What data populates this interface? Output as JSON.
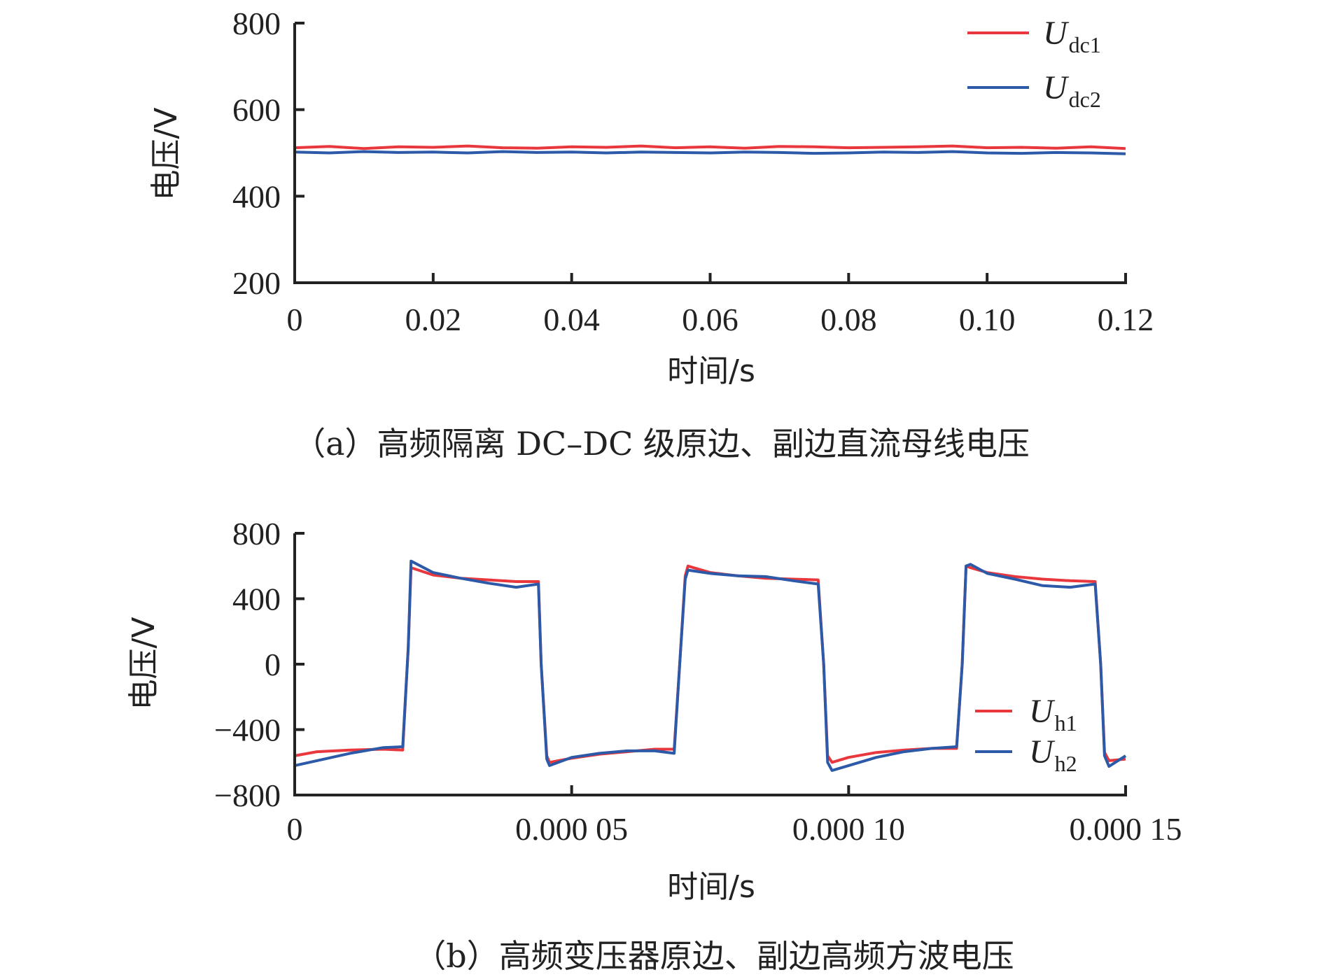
{
  "chart_data": [
    {
      "id": "a",
      "type": "line",
      "caption": "（a）高频隔离 DC–DC 级原边、副边直流母线电压",
      "xlabel": "时间/s",
      "ylabel": "电压/V",
      "xlim": [
        0,
        0.12
      ],
      "ylim": [
        200,
        800
      ],
      "xticks": [
        0,
        0.02,
        0.04,
        0.06,
        0.08,
        0.1,
        0.12
      ],
      "xtick_labels": [
        "0",
        "0.02",
        "0.04",
        "0.06",
        "0.08",
        "0.10",
        "0.12"
      ],
      "yticks": [
        200,
        400,
        600,
        800
      ],
      "ytick_labels": [
        "200",
        "400",
        "600",
        "800"
      ],
      "legend_position": "top-right",
      "series": [
        {
          "name": "U",
          "sub": "dc1",
          "color": "#e8383d",
          "x": [
            0,
            0.005,
            0.01,
            0.015,
            0.02,
            0.025,
            0.03,
            0.035,
            0.04,
            0.045,
            0.05,
            0.055,
            0.06,
            0.065,
            0.07,
            0.075,
            0.08,
            0.085,
            0.09,
            0.095,
            0.1,
            0.105,
            0.11,
            0.115,
            0.12
          ],
          "y": [
            512,
            515,
            510,
            514,
            513,
            516,
            512,
            511,
            514,
            513,
            516,
            512,
            514,
            511,
            515,
            514,
            512,
            513,
            514,
            516,
            512,
            513,
            511,
            514,
            510
          ]
        },
        {
          "name": "U",
          "sub": "dc2",
          "color": "#2c5aa8",
          "x": [
            0,
            0.005,
            0.01,
            0.015,
            0.02,
            0.025,
            0.03,
            0.035,
            0.04,
            0.045,
            0.05,
            0.055,
            0.06,
            0.065,
            0.07,
            0.075,
            0.08,
            0.085,
            0.09,
            0.095,
            0.1,
            0.105,
            0.11,
            0.115,
            0.12
          ],
          "y": [
            502,
            500,
            503,
            501,
            502,
            500,
            503,
            501,
            502,
            500,
            502,
            501,
            500,
            502,
            501,
            499,
            500,
            502,
            501,
            503,
            500,
            499,
            501,
            500,
            498
          ]
        }
      ]
    },
    {
      "id": "b",
      "type": "line",
      "caption": "（b）高频变压器原边、副边高频方波电压",
      "xlabel": "时间/s",
      "ylabel": "电压/V",
      "xlim": [
        0,
        0.00015
      ],
      "ylim": [
        -800,
        800
      ],
      "xticks": [
        0,
        5e-05,
        0.0001,
        0.00015
      ],
      "xtick_labels": [
        "0",
        "0.000 05",
        "0.000 10",
        "0.000 15"
      ],
      "yticks": [
        -800,
        -400,
        0,
        400,
        800
      ],
      "ytick_labels": [
        "−800",
        "−400",
        "0",
        "400",
        "800"
      ],
      "legend_position": "bottom-right",
      "series": [
        {
          "name": "U",
          "sub": "h1",
          "color": "#e8383d",
          "x": [
            0,
            4e-06,
            1e-05,
            1.6e-05,
            1.95e-05,
            2.05e-05,
            2.1e-05,
            2.5e-05,
            3e-05,
            3.5e-05,
            4e-05,
            4.4e-05,
            4.45e-05,
            4.55e-05,
            4.6e-05,
            5e-05,
            5.5e-05,
            6e-05,
            6.5e-05,
            6.85e-05,
            6.95e-05,
            7.05e-05,
            7.1e-05,
            7.5e-05,
            8e-05,
            8.5e-05,
            9e-05,
            9.45e-05,
            9.55e-05,
            9.62e-05,
            9.7e-05,
            0.0001,
            0.000105,
            0.00011,
            0.000115,
            0.0001195,
            0.0001205,
            0.0001212,
            0.000122,
            0.000125,
            0.00013,
            0.000135,
            0.00014,
            0.0001445,
            0.0001455,
            0.0001462,
            0.000147,
            0.00015
          ],
          "y": [
            -560,
            -535,
            -525,
            -520,
            -525,
            100,
            590,
            545,
            525,
            515,
            505,
            505,
            0,
            -560,
            -600,
            -575,
            -550,
            -535,
            -520,
            -520,
            0,
            540,
            600,
            560,
            540,
            525,
            520,
            515,
            0,
            -560,
            -600,
            -570,
            -540,
            -525,
            -515,
            -515,
            0,
            600,
            590,
            560,
            535,
            520,
            510,
            505,
            0,
            -540,
            -590,
            -580
          ]
        },
        {
          "name": "U",
          "sub": "h2",
          "color": "#2c5aa8",
          "x": [
            0,
            4e-06,
            1e-05,
            1.6e-05,
            1.95e-05,
            2.05e-05,
            2.1e-05,
            2.5e-05,
            3e-05,
            3.5e-05,
            4e-05,
            4.4e-05,
            4.45e-05,
            4.55e-05,
            4.6e-05,
            5e-05,
            5.5e-05,
            6e-05,
            6.5e-05,
            6.85e-05,
            6.95e-05,
            7.05e-05,
            7.1e-05,
            7.5e-05,
            8e-05,
            8.5e-05,
            9e-05,
            9.45e-05,
            9.55e-05,
            9.62e-05,
            9.7e-05,
            0.0001,
            0.000105,
            0.00011,
            0.000115,
            0.0001195,
            0.0001205,
            0.0001212,
            0.000122,
            0.000125,
            0.00013,
            0.000135,
            0.00014,
            0.0001445,
            0.0001455,
            0.0001462,
            0.000147,
            0.00015
          ],
          "y": [
            -620,
            -590,
            -545,
            -510,
            -505,
            100,
            630,
            560,
            525,
            495,
            470,
            490,
            0,
            -580,
            -620,
            -570,
            -545,
            -530,
            -530,
            -545,
            0,
            520,
            575,
            555,
            540,
            535,
            510,
            490,
            0,
            -600,
            -650,
            -620,
            -570,
            -535,
            -515,
            -505,
            0,
            600,
            610,
            555,
            520,
            480,
            470,
            490,
            0,
            -560,
            -625,
            -560
          ]
        }
      ]
    }
  ]
}
